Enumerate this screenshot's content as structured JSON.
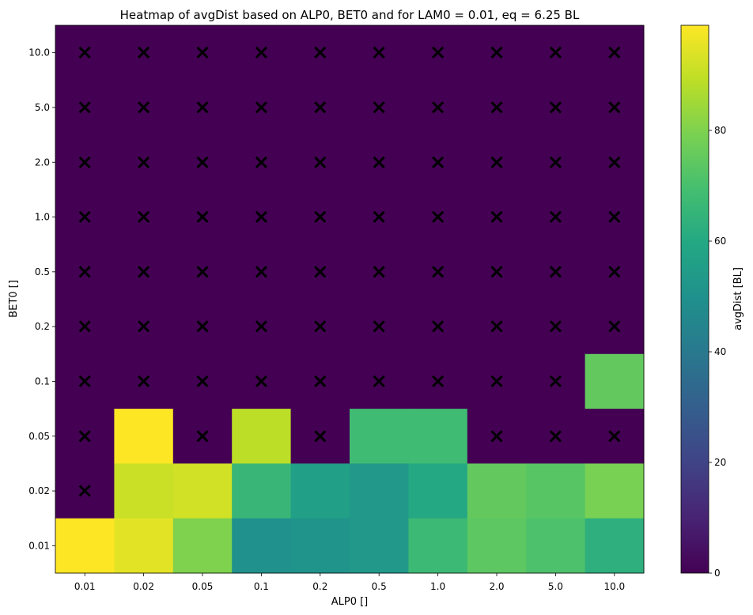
{
  "chart_data": {
    "type": "heatmap",
    "title": "Heatmap of  avgDist based on ALP0, BET0 and for LAM0 =  0.01, eq = 6.25 BL",
    "xlabel": "ALP0 []",
    "ylabel": "BET0 []",
    "x_categories": [
      "0.01",
      "0.02",
      "0.05",
      "0.1",
      "0.2",
      "0.5",
      "1.0",
      "2.0",
      "5.0",
      "10.0"
    ],
    "y_categories": [
      "10.0",
      "5.0",
      "2.0",
      "1.0",
      "0.5",
      "0.2",
      "0.1",
      "0.05",
      "0.02",
      "0.01"
    ],
    "values": [
      [
        0,
        0,
        0,
        0,
        0,
        0,
        0,
        0,
        0,
        0
      ],
      [
        0,
        0,
        0,
        0,
        0,
        0,
        0,
        0,
        0,
        0
      ],
      [
        0,
        0,
        0,
        0,
        0,
        0,
        0,
        0,
        0,
        0
      ],
      [
        0,
        0,
        0,
        0,
        0,
        0,
        0,
        0,
        0,
        0
      ],
      [
        0,
        0,
        0,
        0,
        0,
        0,
        0,
        0,
        0,
        0
      ],
      [
        0,
        0,
        0,
        0,
        0,
        0,
        0,
        0,
        0,
        0
      ],
      [
        0,
        0,
        0,
        0,
        0,
        0,
        0,
        0,
        0,
        75
      ],
      [
        0,
        99,
        0,
        89,
        0,
        68,
        68,
        0,
        0,
        0
      ],
      [
        0,
        91,
        92,
        66,
        56,
        53,
        60,
        75,
        73,
        79
      ],
      [
        99,
        95,
        80,
        50,
        51,
        53,
        67,
        74,
        71,
        63
      ]
    ],
    "failed_marker": "×",
    "failed_cells": [
      [
        1,
        1,
        1,
        1,
        1,
        1,
        1,
        1,
        1,
        1
      ],
      [
        1,
        1,
        1,
        1,
        1,
        1,
        1,
        1,
        1,
        1
      ],
      [
        1,
        1,
        1,
        1,
        1,
        1,
        1,
        1,
        1,
        1
      ],
      [
        1,
        1,
        1,
        1,
        1,
        1,
        1,
        1,
        1,
        1
      ],
      [
        1,
        1,
        1,
        1,
        1,
        1,
        1,
        1,
        1,
        1
      ],
      [
        1,
        1,
        1,
        1,
        1,
        1,
        1,
        1,
        1,
        1
      ],
      [
        1,
        1,
        1,
        1,
        1,
        1,
        1,
        1,
        1,
        0
      ],
      [
        1,
        0,
        1,
        0,
        1,
        0,
        0,
        1,
        1,
        1
      ],
      [
        1,
        0,
        0,
        0,
        0,
        0,
        0,
        0,
        0,
        0
      ],
      [
        0,
        0,
        0,
        0,
        0,
        0,
        0,
        0,
        0,
        0
      ]
    ],
    "colorbar": {
      "label": "avgDist [BL]",
      "ticks": [
        "0",
        "20",
        "40",
        "60",
        "80"
      ],
      "min": 0,
      "max": 99,
      "colormap": "viridis"
    },
    "marker_color": "#ff0000"
  }
}
